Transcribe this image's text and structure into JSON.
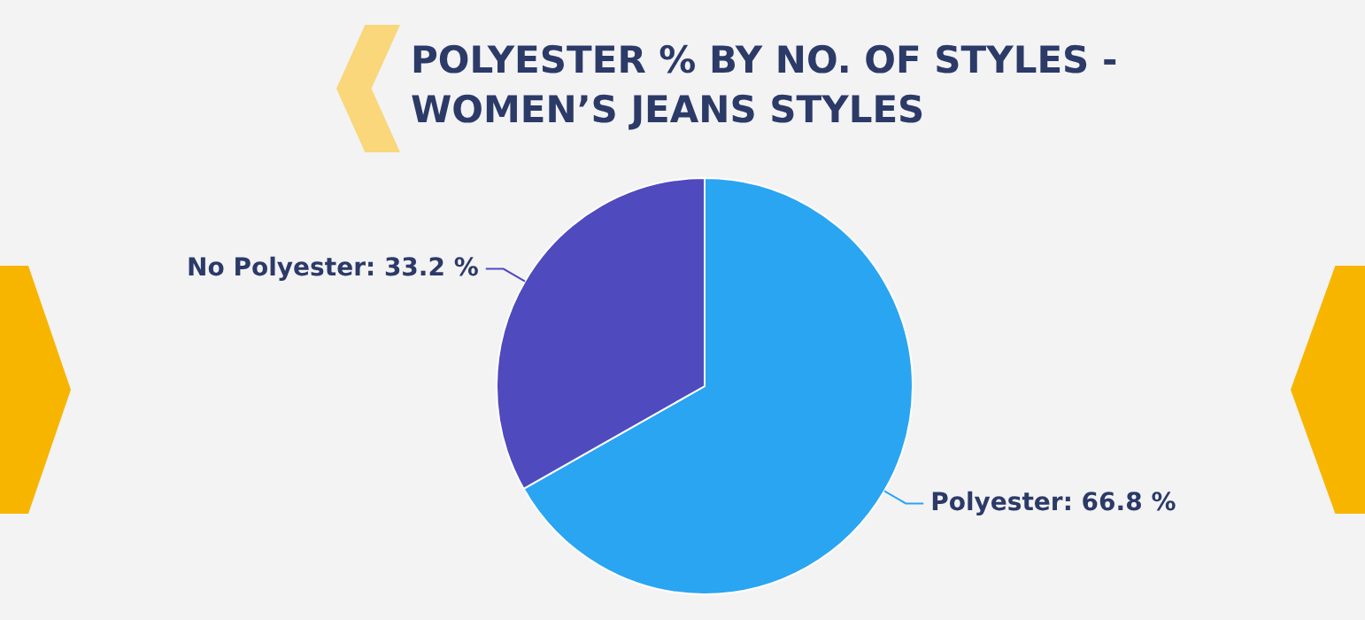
{
  "chart_data": {
    "type": "pie",
    "title": "POLYESTER % BY NO. OF STYLES -\nWOMEN’S JEANS STYLES",
    "categories": [
      "Polyester",
      "No Polyester"
    ],
    "values": [
      66.8,
      33.2
    ],
    "value_labels": [
      "66.8 %",
      "33.2 %"
    ],
    "colors": [
      "#2aa5f1",
      "#4f4abd"
    ],
    "legend": false
  }
}
